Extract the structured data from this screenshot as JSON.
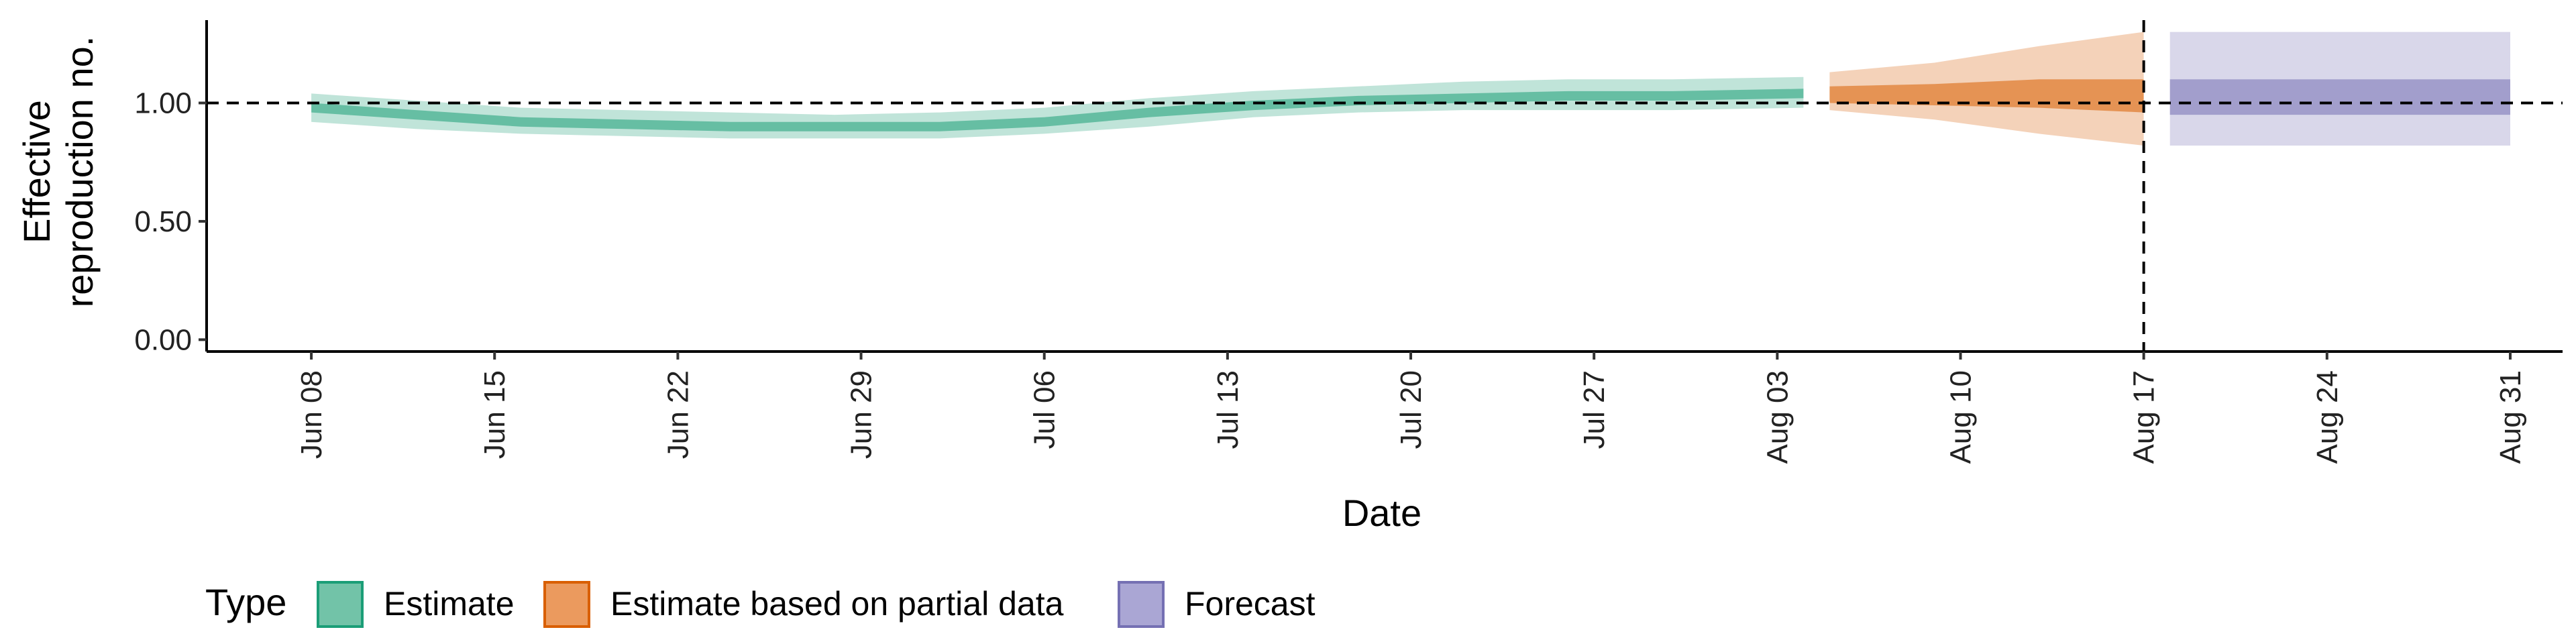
{
  "chart_data": {
    "type": "area",
    "xlabel": "Date",
    "ylabel_lines": [
      "Effective",
      "reproduction no."
    ],
    "y_ticks": [
      0.0,
      0.5,
      1.0
    ],
    "y_tick_labels": [
      "0.00",
      "0.50",
      "1.00"
    ],
    "ylim": [
      -0.05,
      1.35
    ],
    "x_ticks": [
      "2020-06-08",
      "2020-06-15",
      "2020-06-22",
      "2020-06-29",
      "2020-07-06",
      "2020-07-13",
      "2020-07-20",
      "2020-07-27",
      "2020-08-03",
      "2020-08-10",
      "2020-08-17",
      "2020-08-24",
      "2020-08-31"
    ],
    "x_tick_labels": [
      "Jun 08",
      "Jun 15",
      "Jun 22",
      "Jun 29",
      "Jul 06",
      "Jul 13",
      "Jul 20",
      "Jul 27",
      "Aug 03",
      "Aug 10",
      "Aug 17",
      "Aug 24",
      "Aug 31"
    ],
    "xlim": [
      "2020-06-04",
      "2020-09-02"
    ],
    "reference_hline": 1.0,
    "forecast_divider_date": "2020-08-17",
    "legend": {
      "title": "Type",
      "position": "bottom",
      "items": [
        {
          "label": "Estimate",
          "color": "#1B9E77"
        },
        {
          "label": "Estimate based on partial data",
          "color": "#D95F02"
        },
        {
          "label": "Forecast",
          "color": "#7570B3"
        }
      ]
    },
    "series": [
      {
        "type_label": "Estimate",
        "color": "#1B9E77",
        "x": [
          "2020-06-08",
          "2020-06-12",
          "2020-06-16",
          "2020-06-20",
          "2020-06-24",
          "2020-06-28",
          "2020-07-02",
          "2020-07-06",
          "2020-07-10",
          "2020-07-14",
          "2020-07-18",
          "2020-07-22",
          "2020-07-26",
          "2020-07-30",
          "2020-08-04"
        ],
        "median": [
          0.98,
          0.95,
          0.92,
          0.91,
          0.9,
          0.9,
          0.9,
          0.92,
          0.96,
          0.99,
          1.01,
          1.02,
          1.03,
          1.03,
          1.04
        ],
        "lower_50": [
          0.96,
          0.93,
          0.9,
          0.89,
          0.88,
          0.88,
          0.88,
          0.9,
          0.94,
          0.97,
          0.99,
          1.0,
          1.01,
          1.01,
          1.02
        ],
        "upper_50": [
          1.0,
          0.97,
          0.94,
          0.93,
          0.92,
          0.92,
          0.92,
          0.94,
          0.98,
          1.01,
          1.03,
          1.04,
          1.05,
          1.05,
          1.06
        ],
        "lower_90": [
          0.92,
          0.89,
          0.87,
          0.86,
          0.85,
          0.85,
          0.85,
          0.87,
          0.9,
          0.94,
          0.96,
          0.97,
          0.97,
          0.97,
          0.98
        ],
        "upper_90": [
          1.04,
          1.01,
          0.98,
          0.97,
          0.96,
          0.95,
          0.96,
          0.98,
          1.02,
          1.05,
          1.07,
          1.09,
          1.1,
          1.1,
          1.11
        ]
      },
      {
        "type_label": "Estimate based on partial data",
        "color": "#D95F02",
        "x": [
          "2020-08-05",
          "2020-08-09",
          "2020-08-13",
          "2020-08-17"
        ],
        "median": [
          1.04,
          1.04,
          1.05,
          1.04
        ],
        "lower_50": [
          1.0,
          0.99,
          0.98,
          0.96
        ],
        "upper_50": [
          1.07,
          1.08,
          1.1,
          1.1
        ],
        "lower_90": [
          0.97,
          0.93,
          0.87,
          0.82
        ],
        "upper_90": [
          1.13,
          1.17,
          1.24,
          1.3
        ]
      },
      {
        "type_label": "Forecast",
        "color": "#7570B3",
        "x": [
          "2020-08-18",
          "2020-08-31"
        ],
        "median": [
          1.02,
          1.02
        ],
        "lower_50": [
          0.95,
          0.95
        ],
        "upper_50": [
          1.1,
          1.1
        ],
        "lower_90": [
          0.82,
          0.82
        ],
        "upper_90": [
          1.3,
          1.3
        ]
      }
    ]
  }
}
